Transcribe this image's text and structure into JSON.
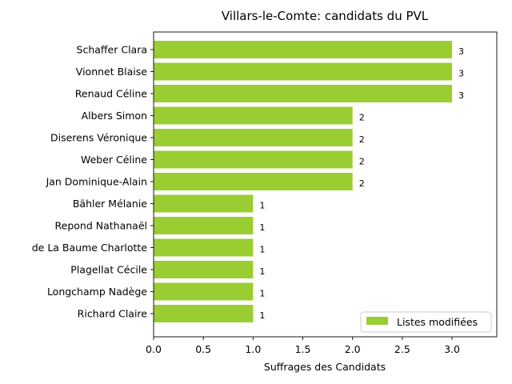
{
  "chart_data": {
    "type": "bar",
    "orientation": "horizontal",
    "title": "Villars-le-Comte: candidats du PVL",
    "xlabel": "Suffrages des Candidats",
    "ylabel": "",
    "xlim": [
      0,
      3.45
    ],
    "xticks": [
      "0.0",
      "0.5",
      "1.0",
      "1.5",
      "2.0",
      "2.5",
      "3.0"
    ],
    "xtick_values": [
      0,
      0.5,
      1.0,
      1.5,
      2.0,
      2.5,
      3.0
    ],
    "grid": false,
    "legend_position": "lower-right",
    "bar_color": "#9acd32",
    "categories": [
      "Schaffer Clara",
      "Vionnet Blaise",
      "Renaud Céline",
      "Albers Simon",
      "Diserens Véronique",
      "Weber Céline",
      "Jan Dominique-Alain",
      "Bähler Mélanie",
      "Repond Nathanaël",
      "de La Baume Charlotte",
      "Plagellat Cécile",
      "Longchamp Nadège",
      "Richard Claire"
    ],
    "series": [
      {
        "name": "Listes modifiées",
        "values": [
          3,
          3,
          3,
          2,
          2,
          2,
          2,
          1,
          1,
          1,
          1,
          1,
          1
        ]
      }
    ]
  }
}
